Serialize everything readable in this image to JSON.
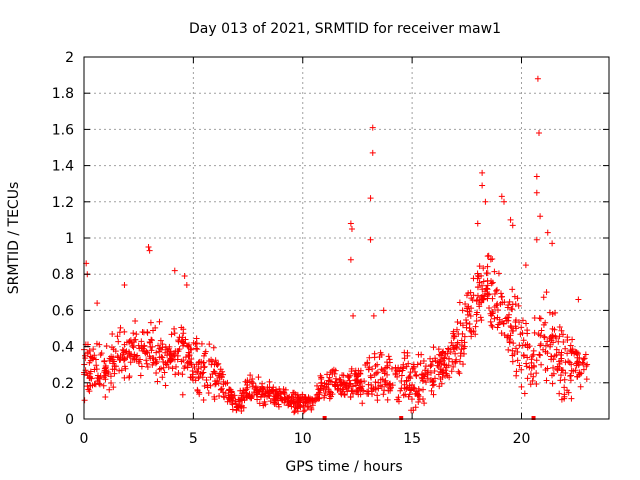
{
  "chart_data": {
    "type": "scatter",
    "title": "Day 013 of 2021, SRMTID for receiver maw1",
    "xlabel": "GPS time / hours",
    "ylabel": "SRMTID / TECUs",
    "xlim": [
      0,
      24
    ],
    "ylim": [
      0,
      2
    ],
    "xticks": [
      0,
      5,
      10,
      15,
      20
    ],
    "yticks": [
      0,
      0.2,
      0.4,
      0.6,
      0.8,
      1,
      1.2,
      1.4,
      1.6,
      1.8,
      2
    ],
    "xtick_labels": [
      "0",
      "5",
      "10",
      "15",
      "20"
    ],
    "ytick_labels": [
      "0",
      "0.2",
      "0.4",
      "0.6",
      "0.8",
      "1",
      "1.2",
      "1.4",
      "1.6",
      "1.8",
      "2"
    ],
    "grid": true,
    "marker": "+",
    "color": "#ff0000",
    "outliers": [
      {
        "x": 0.1,
        "y": 0.86
      },
      {
        "x": 0.15,
        "y": 0.8
      },
      {
        "x": 0.6,
        "y": 0.64
      },
      {
        "x": 1.85,
        "y": 0.74
      },
      {
        "x": 2.95,
        "y": 0.95
      },
      {
        "x": 3.0,
        "y": 0.93
      },
      {
        "x": 4.15,
        "y": 0.82
      },
      {
        "x": 4.6,
        "y": 0.79
      },
      {
        "x": 4.7,
        "y": 0.74
      },
      {
        "x": 12.2,
        "y": 1.08
      },
      {
        "x": 12.25,
        "y": 1.05
      },
      {
        "x": 12.2,
        "y": 0.88
      },
      {
        "x": 12.3,
        "y": 0.57
      },
      {
        "x": 13.2,
        "y": 1.61
      },
      {
        "x": 13.2,
        "y": 1.47
      },
      {
        "x": 13.1,
        "y": 1.22
      },
      {
        "x": 13.1,
        "y": 0.99
      },
      {
        "x": 13.25,
        "y": 0.57
      },
      {
        "x": 13.7,
        "y": 0.6
      },
      {
        "x": 18.2,
        "y": 1.36
      },
      {
        "x": 18.2,
        "y": 1.29
      },
      {
        "x": 18.35,
        "y": 1.2
      },
      {
        "x": 18.0,
        "y": 1.08
      },
      {
        "x": 19.1,
        "y": 1.23
      },
      {
        "x": 19.2,
        "y": 1.2
      },
      {
        "x": 19.5,
        "y": 1.1
      },
      {
        "x": 19.6,
        "y": 1.07
      },
      {
        "x": 20.75,
        "y": 1.88
      },
      {
        "x": 20.8,
        "y": 1.58
      },
      {
        "x": 20.7,
        "y": 1.34
      },
      {
        "x": 20.7,
        "y": 1.25
      },
      {
        "x": 20.85,
        "y": 1.12
      },
      {
        "x": 20.7,
        "y": 0.99
      },
      {
        "x": 21.2,
        "y": 1.03
      },
      {
        "x": 21.4,
        "y": 0.97
      },
      {
        "x": 20.2,
        "y": 0.85
      },
      {
        "x": 22.6,
        "y": 0.66
      }
    ],
    "trend": [
      {
        "x": 0,
        "y": 0.25
      },
      {
        "x": 0.5,
        "y": 0.32
      },
      {
        "x": 1,
        "y": 0.27
      },
      {
        "x": 1.5,
        "y": 0.33
      },
      {
        "x": 2,
        "y": 0.36
      },
      {
        "x": 2.5,
        "y": 0.37
      },
      {
        "x": 3,
        "y": 0.4
      },
      {
        "x": 3.5,
        "y": 0.35
      },
      {
        "x": 4,
        "y": 0.35
      },
      {
        "x": 4.5,
        "y": 0.38
      },
      {
        "x": 5,
        "y": 0.3
      },
      {
        "x": 5.5,
        "y": 0.27
      },
      {
        "x": 6,
        "y": 0.28
      },
      {
        "x": 6.5,
        "y": 0.17
      },
      {
        "x": 7,
        "y": 0.06
      },
      {
        "x": 7.5,
        "y": 0.16
      },
      {
        "x": 8,
        "y": 0.15
      },
      {
        "x": 8.5,
        "y": 0.14
      },
      {
        "x": 9,
        "y": 0.12
      },
      {
        "x": 9.5,
        "y": 0.1
      },
      {
        "x": 10,
        "y": 0.09
      },
      {
        "x": 10.5,
        "y": 0.1
      },
      {
        "x": 11,
        "y": 0.18
      },
      {
        "x": 11.5,
        "y": 0.19
      },
      {
        "x": 12,
        "y": 0.18
      },
      {
        "x": 12.5,
        "y": 0.2
      },
      {
        "x": 13,
        "y": 0.2
      },
      {
        "x": 13.5,
        "y": 0.23
      },
      {
        "x": 14,
        "y": 0.25
      },
      {
        "x": 14.5,
        "y": 0.22
      },
      {
        "x": 15,
        "y": 0.2
      },
      {
        "x": 15.5,
        "y": 0.22
      },
      {
        "x": 16,
        "y": 0.25
      },
      {
        "x": 16.5,
        "y": 0.3
      },
      {
        "x": 17,
        "y": 0.35
      },
      {
        "x": 17.5,
        "y": 0.55
      },
      {
        "x": 18,
        "y": 0.68
      },
      {
        "x": 18.5,
        "y": 0.7
      },
      {
        "x": 19,
        "y": 0.62
      },
      {
        "x": 19.5,
        "y": 0.52
      },
      {
        "x": 20,
        "y": 0.38
      },
      {
        "x": 20.5,
        "y": 0.28
      },
      {
        "x": 21,
        "y": 0.45
      },
      {
        "x": 21.5,
        "y": 0.4
      },
      {
        "x": 22,
        "y": 0.28
      },
      {
        "x": 22.5,
        "y": 0.3
      },
      {
        "x": 23,
        "y": 0.33
      }
    ],
    "trend_spread": [
      0.2,
      0.2,
      0.2,
      0.2,
      0.22,
      0.2,
      0.25,
      0.22,
      0.2,
      0.25,
      0.2,
      0.2,
      0.25,
      0.15,
      0.07,
      0.12,
      0.1,
      0.08,
      0.08,
      0.07,
      0.07,
      0.07,
      0.12,
      0.12,
      0.15,
      0.18,
      0.2,
      0.2,
      0.2,
      0.2,
      0.2,
      0.2,
      0.2,
      0.2,
      0.25,
      0.3,
      0.35,
      0.3,
      0.3,
      0.3,
      0.3,
      0.3,
      0.35,
      0.3,
      0.3,
      0.25,
      0.25
    ],
    "generated_points_per_hour": 60,
    "gap_markers_x": [
      11.0,
      14.5,
      20.55
    ]
  }
}
